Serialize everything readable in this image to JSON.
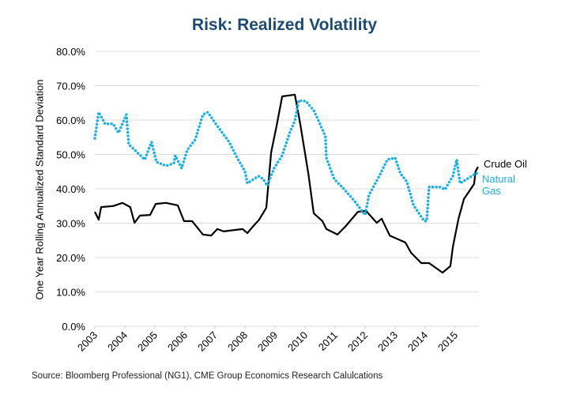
{
  "chart_data": {
    "type": "line",
    "title": "Risk: Realized Volatility",
    "xlabel": "",
    "ylabel": "One Year Rolling Annualized Standard Deviation",
    "source": "Source: Bloomberg Professional (NG1), CME Group Economics Research Calulcations",
    "xlim": [
      2003,
      2015.8
    ],
    "ylim": [
      0,
      80
    ],
    "x_ticks": [
      "2003",
      "2004",
      "2005",
      "2006",
      "2007",
      "2008",
      "2009",
      "2010",
      "2011",
      "2012",
      "2013",
      "2014",
      "2015"
    ],
    "y_ticks": [
      "0.0%",
      "10.0%",
      "20.0%",
      "30.0%",
      "40.0%",
      "50.0%",
      "60.0%",
      "70.0%",
      "80.0%"
    ],
    "grid": true,
    "legend": "inline-right",
    "series": [
      {
        "name": "Crude Oil",
        "color": "#000000",
        "style": "solid",
        "x": [
          2003.0,
          2003.13,
          2003.21,
          2003.61,
          2003.92,
          2004.18,
          2004.32,
          2004.5,
          2004.84,
          2005.03,
          2005.37,
          2005.76,
          2005.97,
          2006.24,
          2006.6,
          2006.87,
          2007.08,
          2007.29,
          2007.92,
          2008.08,
          2008.26,
          2008.47,
          2008.71,
          2008.87,
          2009.05,
          2009.24,
          2009.66,
          2009.84,
          2010.11,
          2010.29,
          2010.58,
          2010.71,
          2011.08,
          2011.34,
          2011.76,
          2012.03,
          2012.39,
          2012.55,
          2012.82,
          2013.34,
          2013.53,
          2013.87,
          2014.13,
          2014.58,
          2014.84,
          2014.92,
          2015.11,
          2015.29,
          2015.63,
          2015.68,
          2015.76
        ],
        "y": [
          33.3,
          31,
          34.7,
          35,
          35.9,
          34.7,
          30.1,
          32.2,
          32.4,
          35.6,
          35.9,
          35.2,
          30.6,
          30.6,
          26.7,
          26.4,
          28.3,
          27.6,
          28.3,
          27.1,
          29,
          31,
          34.5,
          50.6,
          58.2,
          66.9,
          67.4,
          58.9,
          44.4,
          32.9,
          30.6,
          28.3,
          26.7,
          29,
          33.3,
          33.6,
          30.1,
          31.3,
          26.4,
          24.4,
          21.4,
          18.4,
          18.4,
          15.6,
          17.5,
          23,
          31.3,
          37,
          41.4,
          45.1,
          46.4
        ]
      },
      {
        "name": "Natural Gas",
        "color": "#1ab0e6",
        "style": "dotted",
        "x": [
          2003.0,
          2003.13,
          2003.34,
          2003.61,
          2003.79,
          2004.05,
          2004.13,
          2004.39,
          2004.66,
          2004.89,
          2005.05,
          2005.37,
          2005.63,
          2005.68,
          2005.89,
          2006.08,
          2006.34,
          2006.6,
          2006.76,
          2007.03,
          2007.47,
          2007.74,
          2008.0,
          2008.08,
          2008.45,
          2008.61,
          2008.74,
          2008.97,
          2009.24,
          2009.5,
          2009.66,
          2009.79,
          2010.03,
          2010.29,
          2010.45,
          2010.68,
          2010.71,
          2010.97,
          2011.24,
          2011.61,
          2012.0,
          2012.13,
          2012.47,
          2012.74,
          2013.0,
          2013.18,
          2013.39,
          2013.61,
          2013.97,
          2014.05,
          2014.13,
          2014.5,
          2014.66,
          2014.92,
          2015.05,
          2015.16,
          2015.45,
          2015.71,
          2015.76
        ],
        "y": [
          54.7,
          62.3,
          58.9,
          58.9,
          56.3,
          61.6,
          52.9,
          50.8,
          48.5,
          53.6,
          47.8,
          46.7,
          47.4,
          49.7,
          46,
          51.3,
          54.3,
          61.6,
          62.3,
          58.9,
          53.6,
          49,
          45.1,
          41.6,
          43.7,
          42.8,
          40.9,
          46,
          49.7,
          56.6,
          59.8,
          65.7,
          65.5,
          62.8,
          59.8,
          55.2,
          49,
          42.8,
          40.5,
          36.8,
          32.4,
          38.2,
          43.7,
          48.5,
          49,
          44.4,
          42.1,
          35.2,
          30.6,
          30.6,
          40.5,
          40.5,
          39.8,
          43.7,
          48.5,
          41.6,
          43.2,
          44.6,
          43.9
        ]
      }
    ],
    "annotations": {
      "crude_label": "Crude Oil",
      "gas_label_1": "Natural",
      "gas_label_2": "Gas"
    }
  }
}
